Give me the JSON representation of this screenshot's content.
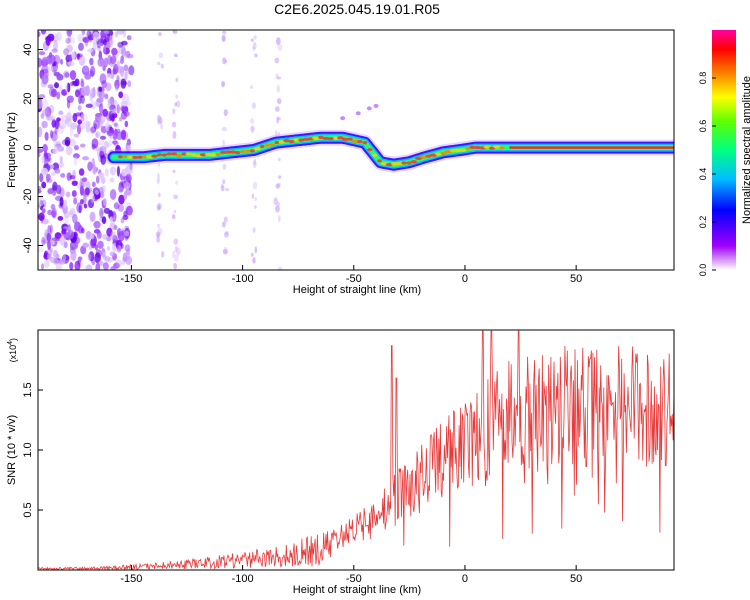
{
  "figure_title": "C2E6.2025.045.19.01.R05",
  "chart_data": [
    {
      "type": "heatmap",
      "title": "",
      "xlabel": "Height of straight line (km)",
      "ylabel": "Frequency (Hz)",
      "xlim": [
        -192,
        94
      ],
      "ylim": [
        -50,
        48
      ],
      "xticks": [
        -150,
        -100,
        -50,
        0,
        50
      ],
      "xtick_labels": [
        "-150",
        "-100",
        "-50",
        "0",
        "50"
      ],
      "yticks": [
        -40,
        -20,
        0,
        20,
        40
      ],
      "ytick_labels": [
        "-40",
        "-20",
        "0",
        "20",
        "40"
      ],
      "colorbar": {
        "label": "Normalized spectral amplitude",
        "range": [
          0,
          1
        ],
        "ticks": [
          0.0,
          0.2,
          0.4,
          0.6,
          0.8
        ],
        "tick_labels": [
          "0.0",
          "0.2",
          "0.4",
          "0.6",
          "0.8"
        ]
      },
      "ridge": {
        "x": [
          -155,
          -145,
          -135,
          -125,
          -115,
          -105,
          -95,
          -85,
          -75,
          -65,
          -55,
          -45,
          -38,
          -32,
          -25,
          -18,
          -10,
          -2,
          5,
          15,
          25,
          40,
          60,
          80,
          94
        ],
        "y": [
          -4,
          -4,
          -3,
          -3,
          -3,
          -2,
          -1,
          2,
          3,
          4,
          4,
          2,
          -6,
          -7,
          -6,
          -4,
          -2,
          -1,
          0,
          0,
          0,
          0,
          0,
          0,
          0
        ]
      },
      "noise_region": [
        -192,
        -150
      ]
    },
    {
      "type": "line",
      "title": "",
      "xlabel": "Height of straight line (km)",
      "ylabel": "SNR (10 * v/v)",
      "multiplier_label": "(x10",
      "multiplier_exponent": "4",
      "xlim": [
        -192,
        94
      ],
      "ylim": [
        0,
        2.0
      ],
      "xticks": [
        -150,
        -100,
        -50,
        0,
        50
      ],
      "xtick_labels": [
        "-150",
        "-100",
        "-50",
        "0",
        "50"
      ],
      "yticks": [
        0.5,
        1.0,
        1.5
      ],
      "ytick_labels": [
        "0.5",
        "1.0",
        "1.5"
      ],
      "series": [
        {
          "name": "SNR",
          "color": "#e83a3a",
          "envelope_x": [
            -192,
            -160,
            -140,
            -120,
            -100,
            -80,
            -60,
            -50,
            -40,
            -30,
            -20,
            -10,
            0,
            10,
            20,
            30,
            50,
            70,
            94
          ],
          "envelope_y": [
            0.02,
            0.03,
            0.06,
            0.1,
            0.15,
            0.22,
            0.35,
            0.45,
            0.6,
            0.85,
            1.05,
            1.25,
            1.45,
            1.62,
            1.75,
            1.85,
            1.88,
            1.87,
            1.86
          ],
          "spikes_x": [
            -33,
            -31,
            8,
            12,
            24
          ],
          "spikes_y": [
            1.87,
            1.6,
            1.99,
            1.99,
            1.99
          ]
        }
      ]
    }
  ]
}
